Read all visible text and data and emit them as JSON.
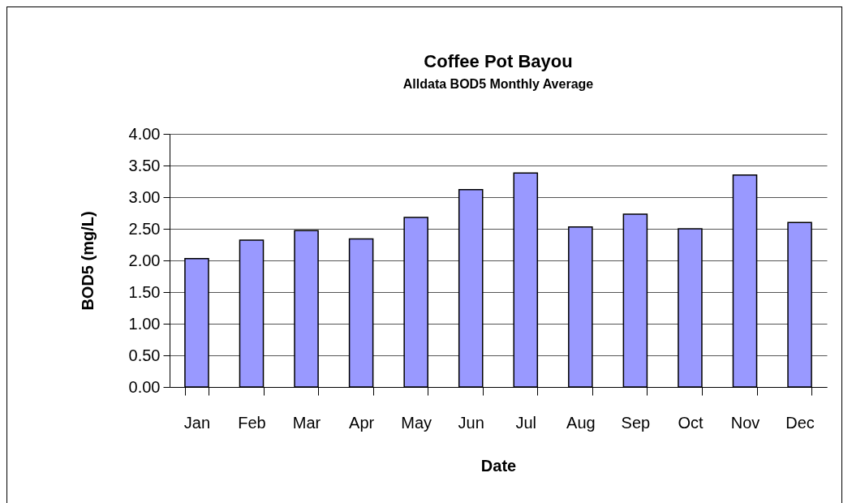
{
  "chart_data": {
    "type": "bar",
    "title": "Coffee Pot Bayou",
    "subtitle": "Alldata BOD5 Monthly Average",
    "xlabel": "Date",
    "ylabel": "BOD5 (mg/L)",
    "categories": [
      "Jan",
      "Feb",
      "Mar",
      "Apr",
      "May",
      "Jun",
      "Jul",
      "Aug",
      "Sep",
      "Oct",
      "Nov",
      "Dec"
    ],
    "values": [
      2.03,
      2.32,
      2.47,
      2.34,
      2.68,
      3.12,
      3.38,
      2.53,
      2.73,
      2.5,
      3.35,
      2.6
    ],
    "color": "#9999ff",
    "ylim": [
      0,
      4
    ],
    "yticks": [
      {
        "value": 0,
        "label": "0.00"
      },
      {
        "value": 0.5,
        "label": "0.50"
      },
      {
        "value": 1,
        "label": "1.00"
      },
      {
        "value": 1.5,
        "label": "1.50"
      },
      {
        "value": 2,
        "label": "2.00"
      },
      {
        "value": 2.5,
        "label": "2.50"
      },
      {
        "value": 3,
        "label": "3.00"
      },
      {
        "value": 3.5,
        "label": "3.50"
      },
      {
        "value": 4,
        "label": "4.00"
      }
    ],
    "grid": "y"
  }
}
